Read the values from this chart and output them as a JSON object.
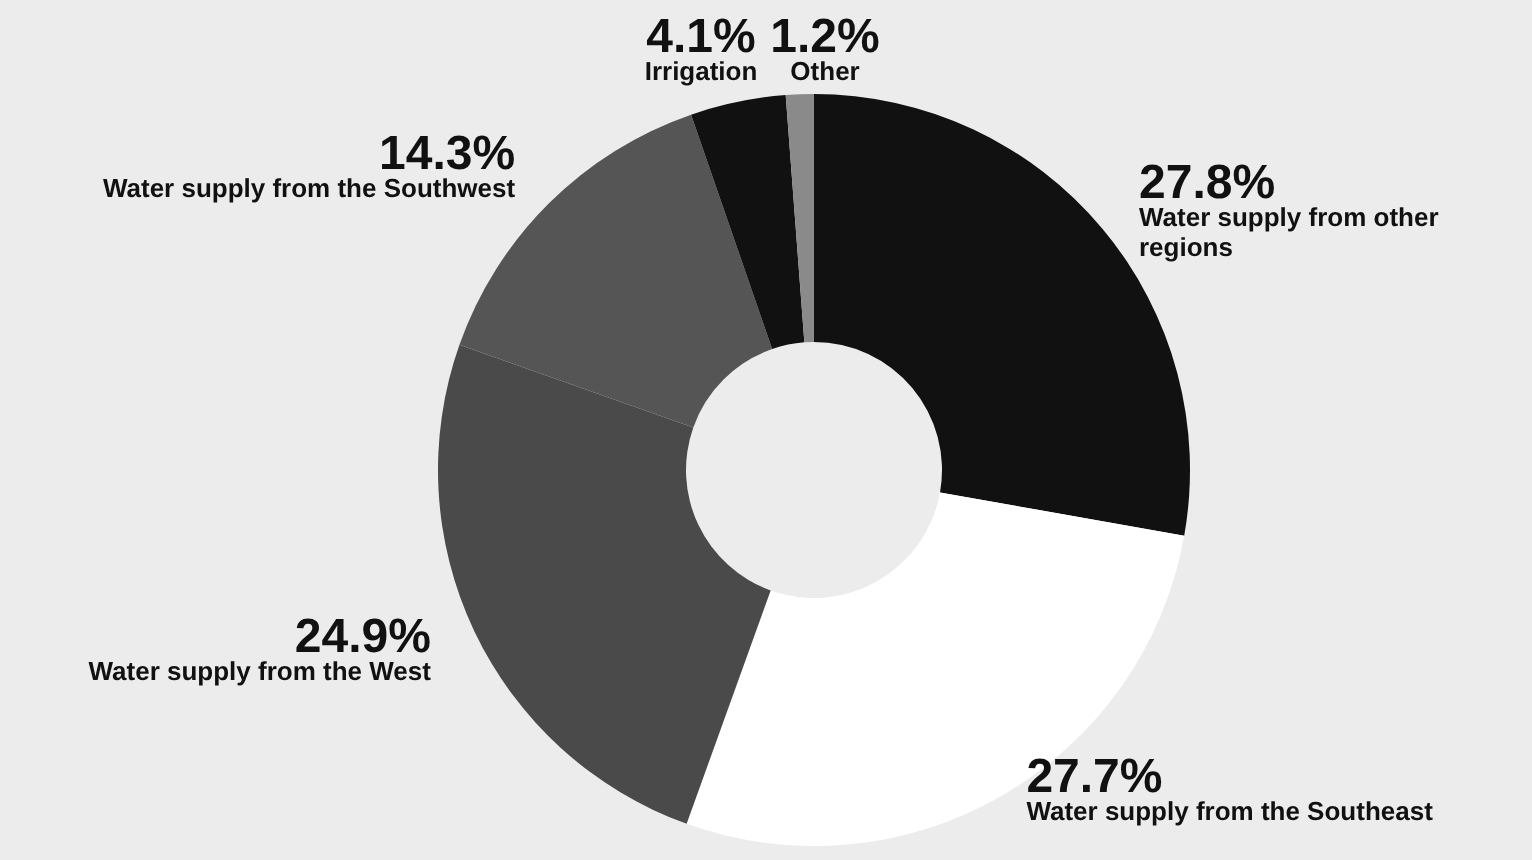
{
  "chart_data": {
    "type": "donut",
    "categories": [
      "Water supply from other regions",
      "Water supply from the Southeast",
      "Water supply from the West",
      "Water supply from the Southwest",
      "Irrigation",
      "Other"
    ],
    "values": [
      27.8,
      27.7,
      24.9,
      14.3,
      4.1,
      1.2
    ],
    "value_labels": [
      "27.8%",
      "27.7%",
      "24.9%",
      "14.3%",
      "4.1%",
      "1.2%"
    ],
    "colors": [
      "#111111",
      "#ffffff",
      "#4a4a4a",
      "#555555",
      "#111111",
      "#8a8a8a"
    ]
  }
}
